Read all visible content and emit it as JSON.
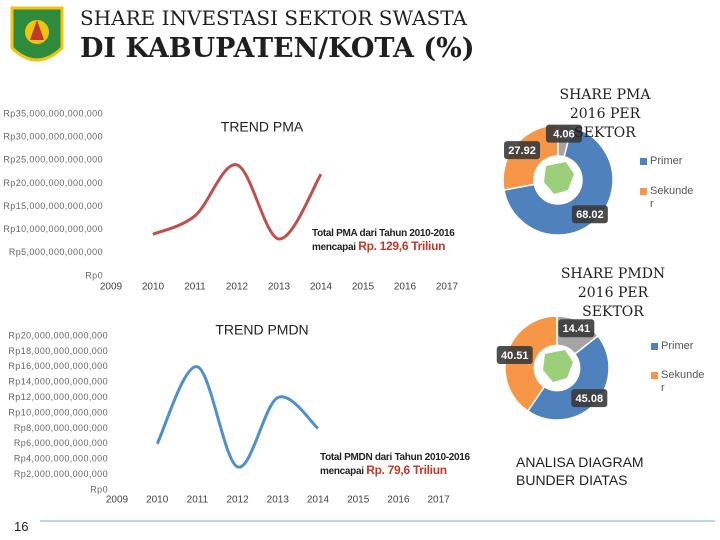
{
  "header": {
    "line1": "SHARE INVESTASI SEKTOR SWASTA",
    "line2": "DI KABUPATEN/KOTA (%)"
  },
  "chart_data": [
    {
      "type": "line",
      "title": "TREND PMA",
      "categories": [
        "2009",
        "2010",
        "2011",
        "2012",
        "2013",
        "2014",
        "2015",
        "2016",
        "2017"
      ],
      "values": [
        null,
        9000000000000,
        13000000000000,
        24000000000000,
        8000000000000,
        22000000000000,
        null,
        null,
        null
      ],
      "color": "#c0504d",
      "ylim": [
        0,
        35000000000000
      ],
      "yticks": [
        {
          "value": 0,
          "label": "Rp0"
        },
        {
          "value": 5000000000000,
          "label": "Rp5,000,000,000,000"
        },
        {
          "value": 10000000000000,
          "label": "Rp10,000,000,000,000"
        },
        {
          "value": 15000000000000,
          "label": "Rp15,000,000,000,000"
        },
        {
          "value": 20000000000000,
          "label": "Rp20,000,000,000,000"
        },
        {
          "value": 25000000000000,
          "label": "Rp25,000,000,000,000"
        },
        {
          "value": 30000000000000,
          "label": "Rp30,000,000,000,000"
        },
        {
          "value": 35000000000000,
          "label": "Rp35,000,000,000,000"
        }
      ],
      "annotation": {
        "line1": "Total PMA dari Tahun 2010-2016",
        "line2": "mencapai",
        "highlight": "Rp. 129,6 Triliun"
      }
    },
    {
      "type": "pie",
      "title": "SHARE PMA 2016 PER SEKTOR",
      "categories": [
        "Primer",
        "Sekunder",
        null
      ],
      "values": [
        68.02,
        27.92,
        4.06
      ],
      "colors": [
        "#4f81bd",
        "#f79646",
        "#a5a5a5"
      ]
    },
    {
      "type": "line",
      "title": "TREND PMDN",
      "categories": [
        "2009",
        "2010",
        "2011",
        "2012",
        "2013",
        "2014",
        "2015",
        "2016",
        "2017"
      ],
      "values": [
        null,
        6000000000000,
        16000000000000,
        3000000000000,
        12000000000000,
        8000000000000,
        null,
        null,
        null
      ],
      "color": "#4f8fcf",
      "ylim": [
        0,
        20000000000000
      ],
      "yticks": [
        {
          "value": 0,
          "label": "Rp0"
        },
        {
          "value": 2000000000000,
          "label": "Rp2,000,000,000,000"
        },
        {
          "value": 4000000000000,
          "label": "Rp4,000,000,000,000"
        },
        {
          "value": 6000000000000,
          "label": "Rp6,000,000,000,000"
        },
        {
          "value": 8000000000000,
          "label": "Rp8,000,000,000,000"
        },
        {
          "value": 10000000000000,
          "label": "Rp10,000,000,000,000"
        },
        {
          "value": 12000000000000,
          "label": "Rp12,000,000,000,000"
        },
        {
          "value": 14000000000000,
          "label": "Rp14,000,000,000,000"
        },
        {
          "value": 16000000000000,
          "label": "Rp16,000,000,000,000"
        },
        {
          "value": 18000000000000,
          "label": "Rp18,000,000,000,000"
        },
        {
          "value": 20000000000000,
          "label": "Rp20,000,000,000,000"
        }
      ],
      "annotation": {
        "line1": "Total PMDN dari Tahun 2010-2016",
        "line2": "mencapai",
        "highlight": "Rp. 79,6 Triliun"
      }
    },
    {
      "type": "pie",
      "title": "SHARE PMDN 2016 PER SEKTOR",
      "categories": [
        "Primer",
        "Sekunder",
        null
      ],
      "values": [
        45.08,
        40.51,
        14.41
      ],
      "colors": [
        "#4f81bd",
        "#f79646",
        "#a5a5a5"
      ]
    }
  ],
  "note": "ANALISA DIAGRAM BUNDER DIATAS",
  "page_number": "16"
}
